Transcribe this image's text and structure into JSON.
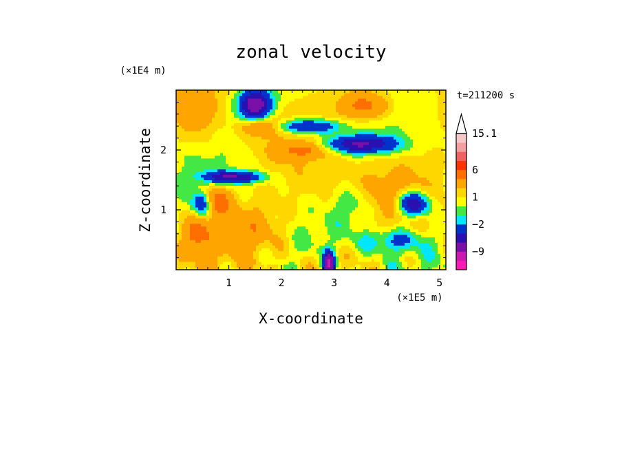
{
  "chart_data": {
    "type": "heatmap",
    "title": "zonal velocity",
    "xlabel": "X-coordinate",
    "ylabel": "Z-coordinate",
    "x_unit": "(×1E5 m)",
    "y_unit": "(×1E4 m)",
    "time_label": "t=211200 s",
    "xlim": [
      0,
      5.12
    ],
    "ylim": [
      0,
      3.0
    ],
    "x_ticks": [
      1,
      2,
      3,
      4,
      5
    ],
    "x_tick_labels": [
      "1",
      "2",
      "3",
      "4",
      "5"
    ],
    "y_ticks": [
      1,
      2
    ],
    "y_tick_labels": [
      "1",
      "2"
    ],
    "colorbar": {
      "levels": [
        -15.1,
        -12,
        -9,
        -6,
        -4,
        -2,
        -1,
        0,
        1,
        2,
        4,
        6,
        8,
        10,
        12,
        15.1
      ],
      "tick_labels": [
        "15.1",
        "6",
        "1",
        "−2",
        "−9"
      ],
      "tick_values": [
        15.1,
        6,
        1,
        -2,
        -9
      ],
      "colors": [
        "#ff1ab4",
        "#cc19b0",
        "#7b10a8",
        "#2a10b0",
        "#0033cc",
        "#00e6ff",
        "#44e844",
        "#ffff00",
        "#ffd700",
        "#ffa500",
        "#ff6f00",
        "#ff3300",
        "#f06262",
        "#f4a0a0",
        "#f5c8c8"
      ],
      "extend": "max"
    },
    "grid": false,
    "legend": "colorbar right"
  }
}
